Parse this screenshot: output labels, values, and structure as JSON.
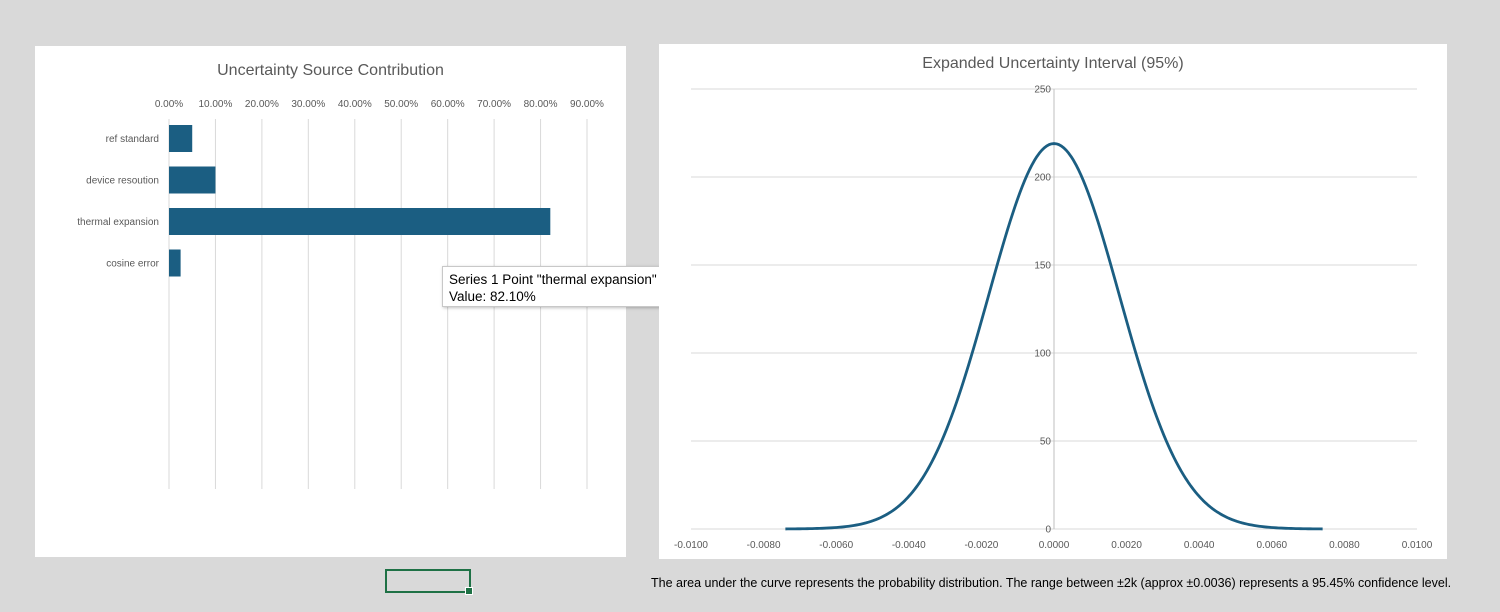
{
  "chart_data": [
    {
      "type": "bar",
      "orientation": "horizontal",
      "title": "Uncertainty Source Contribution",
      "categories": [
        "ref standard",
        "device resoution",
        "thermal expansion",
        "cosine error"
      ],
      "series": [
        {
          "values": [
            0.05,
            0.1,
            0.821,
            0.025
          ]
        }
      ],
      "xlim": [
        0,
        0.9
      ],
      "x_ticks": [
        "0.00%",
        "10.00%",
        "20.00%",
        "30.00%",
        "40.00%",
        "50.00%",
        "60.00%",
        "70.00%",
        "80.00%",
        "90.00%"
      ],
      "x_axis_position": "top",
      "grid": true,
      "bar_color": "#1b5e82",
      "tooltip": {
        "line1": "Series 1 Point \"thermal expansion\"",
        "line2": "Value: 82.10%"
      }
    },
    {
      "type": "line",
      "title": "Expanded Uncertainty Interval (95%)",
      "distribution": {
        "mean": 0.0,
        "std": 0.0018,
        "peak": 219
      },
      "x_range_plotted": [
        -0.0074,
        0.0074
      ],
      "xlim": [
        -0.01,
        0.01
      ],
      "ylim": [
        0,
        250
      ],
      "x_ticks": [
        "-0.0100",
        "-0.0080",
        "-0.0060",
        "-0.0040",
        "-0.0020",
        "0.0000",
        "0.0020",
        "0.0040",
        "0.0060",
        "0.0080",
        "0.0100"
      ],
      "y_ticks": [
        "0",
        "50",
        "100",
        "150",
        "200",
        "250"
      ],
      "grid": true,
      "line_color": "#1b5e82"
    }
  ],
  "footer_note": "The area under the curve represents the probability distribution. The range between ±2k (approx ±0.0036) represents a 95.45% confidence level."
}
